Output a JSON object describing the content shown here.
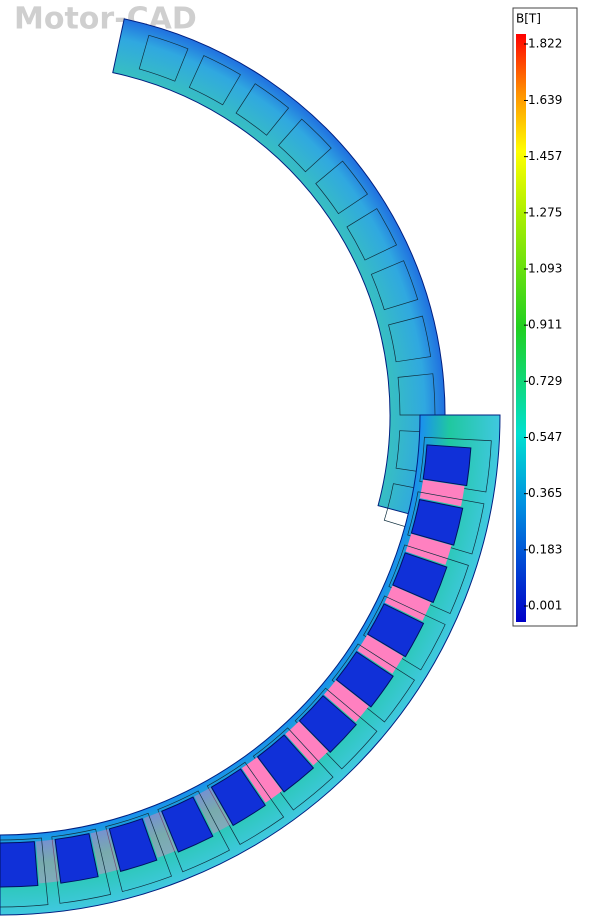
{
  "watermark": "Motor-CAD",
  "legend": {
    "title": "B[T]",
    "ticks": [
      1.822,
      1.639,
      1.457,
      1.275,
      1.093,
      0.911,
      0.729,
      0.547,
      0.365,
      0.183,
      0.001
    ]
  }
}
